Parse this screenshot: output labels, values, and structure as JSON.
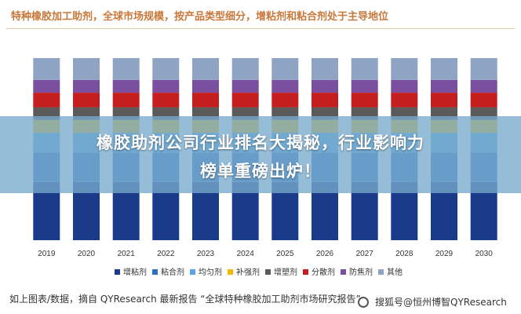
{
  "header": {
    "title": "特种橡胶加工助剂，全球市场规模，按产品类型细分，增粘剂和粘合剂处于主导地位"
  },
  "overlay": {
    "line1": "橡胶助剂公司行业排名大揭秘，行业影响力",
    "line2": "榜单重磅出炉！"
  },
  "footer": {
    "text": "如上图表/数据，摘自 QYResearch 最新报告 “全球特种橡胶加工助剂市场研究报告”",
    "watermark": "搜狐号@恒州博智QYResearch"
  },
  "chart_data": {
    "type": "bar",
    "stacked": true,
    "normalized_percent": true,
    "categories": [
      "2019",
      "2020",
      "2021",
      "2022",
      "2023",
      "2024",
      "2025",
      "2026",
      "2027",
      "2028",
      "2029",
      "2030"
    ],
    "series": [
      {
        "name": "增粘剂",
        "color": "#1a3a8a",
        "values": [
          32,
          32,
          32,
          32,
          32,
          32,
          32,
          32,
          32,
          32,
          32,
          32
        ]
      },
      {
        "name": "粘合剂",
        "color": "#2f6fc0",
        "values": [
          16,
          16,
          16,
          16,
          16,
          16,
          16,
          16,
          16,
          16,
          16,
          16
        ]
      },
      {
        "name": "均匀剂",
        "color": "#5ea2e0",
        "values": [
          11,
          11,
          11,
          11,
          11,
          11,
          11,
          11,
          11,
          11,
          11,
          11
        ]
      },
      {
        "name": "补强剂",
        "color": "#f2b705",
        "values": [
          7,
          7,
          7,
          7,
          7,
          7,
          7,
          7,
          7,
          7,
          7,
          7
        ]
      },
      {
        "name": "增塑剂",
        "color": "#5a5a5a",
        "values": [
          7,
          7,
          7,
          7,
          7,
          7,
          7,
          7,
          7,
          7,
          7,
          7
        ]
      },
      {
        "name": "分散剂",
        "color": "#c41e1e",
        "values": [
          8,
          8,
          8,
          8,
          8,
          8,
          8,
          8,
          8,
          8,
          8,
          8
        ]
      },
      {
        "name": "防焦剂",
        "color": "#7b4fa0",
        "values": [
          7,
          7,
          7,
          7,
          7,
          7,
          7,
          7,
          7,
          7,
          7,
          7
        ]
      },
      {
        "name": "其他",
        "color": "#8fa3c3",
        "values": [
          12,
          12,
          12,
          12,
          12,
          12,
          12,
          12,
          12,
          12,
          12,
          12
        ]
      }
    ],
    "ylim": [
      0,
      100
    ],
    "legend_position": "bottom",
    "grid": false
  }
}
